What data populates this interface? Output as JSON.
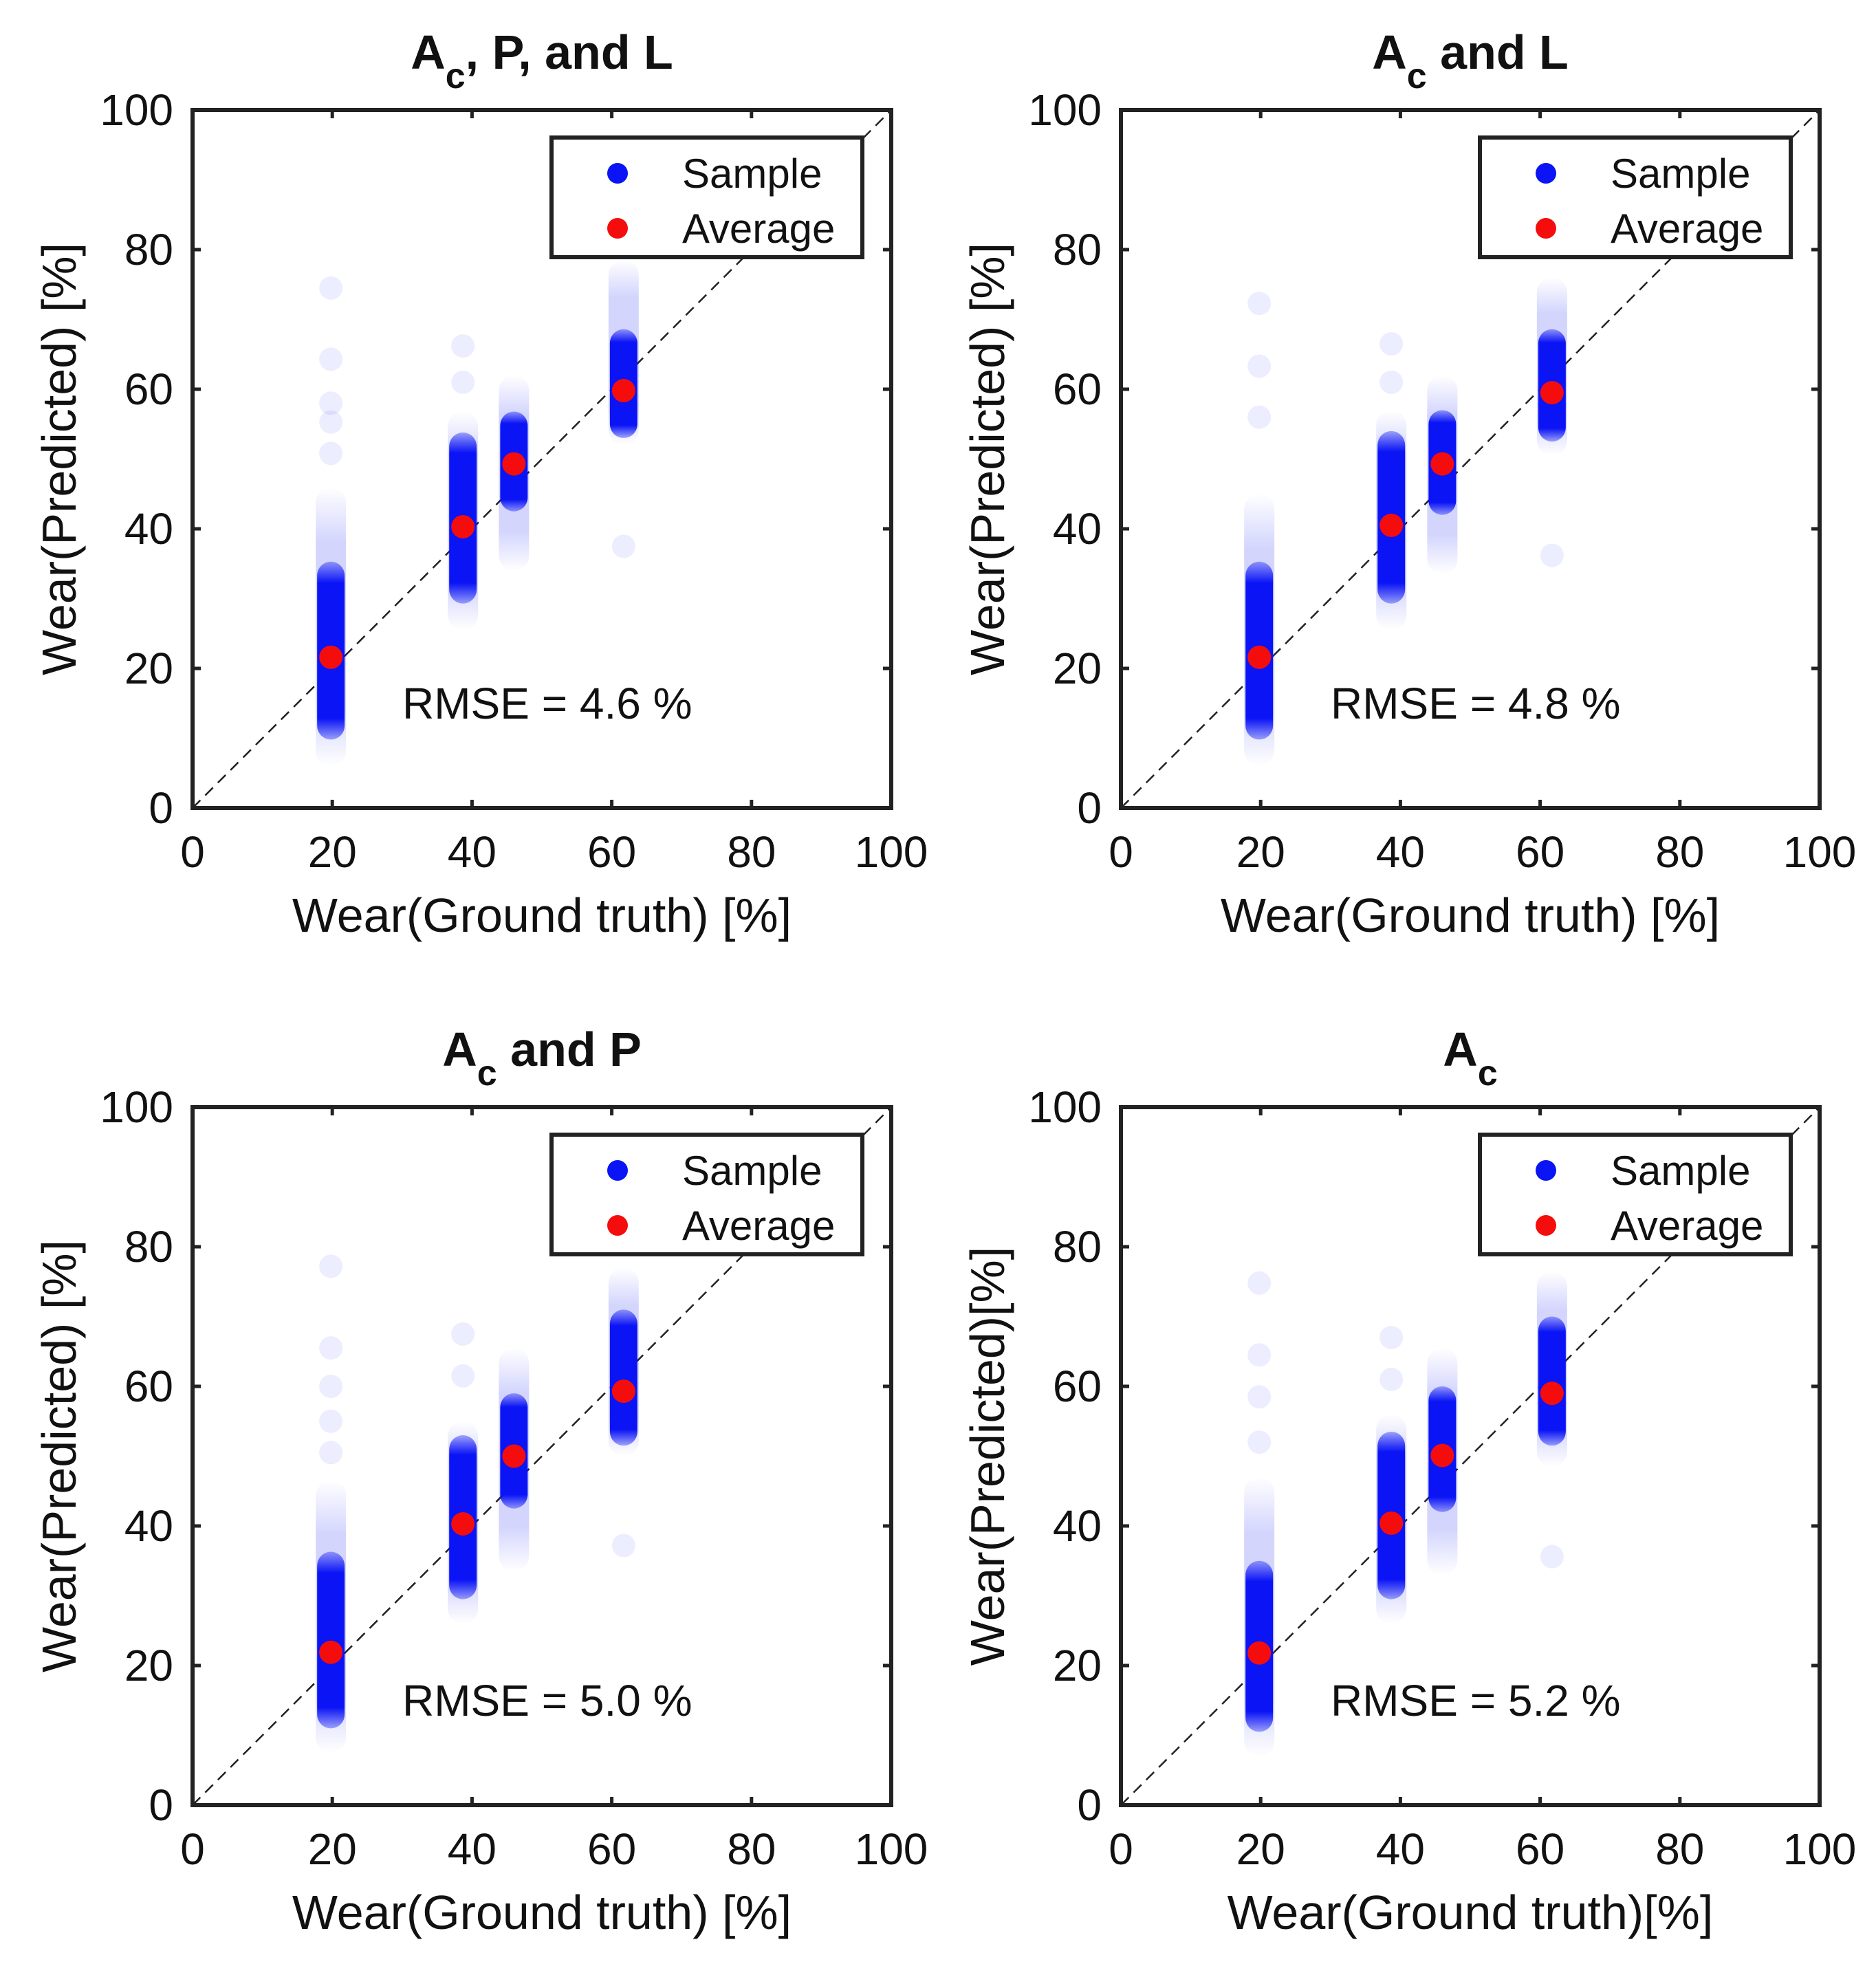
{
  "colors": {
    "sample": "#0a14f5",
    "average": "#f50d0d",
    "axis": "#222222",
    "diagonal": "#222222"
  },
  "chart_data": [
    {
      "type": "scatter",
      "title": {
        "main": "A",
        "sub": "c",
        "rest": ", P, and L"
      },
      "xlabel": "Wear(Ground truth) [%]",
      "ylabel": "Wear(Predicted) [%]",
      "xlim": [
        0,
        100
      ],
      "ylim": [
        0,
        100
      ],
      "xticks": [
        "0",
        "20",
        "40",
        "60",
        "80",
        "100"
      ],
      "yticks": [
        "0",
        "20",
        "40",
        "60",
        "80",
        "100"
      ],
      "legend": {
        "position": "top-right",
        "entries": [
          "Sample",
          "Average"
        ]
      },
      "annotation": "RMSE =  4.6 %",
      "reference_line": "y = x",
      "series": [
        {
          "name": "Sample",
          "columns": [
            {
              "x": 19.8,
              "core": [
                9.8,
                35.3
              ],
              "faint": [
                6.0,
                46.0
              ],
              "outliers": [
                50.8,
                55.3,
                58.0,
                64.3,
                74.5
              ]
            },
            {
              "x": 38.7,
              "core": [
                29.3,
                53.8
              ],
              "faint": [
                25.5,
                56.8
              ],
              "outliers": [
                61.0,
                66.2
              ]
            },
            {
              "x": 46.0,
              "core": [
                42.5,
                56.8
              ],
              "faint": [
                34.0,
                62.0
              ],
              "outliers": []
            },
            {
              "x": 61.7,
              "core": [
                53.0,
                68.6
              ],
              "faint": [
                52.0,
                78.5
              ],
              "outliers": [
                37.5
              ]
            }
          ]
        },
        {
          "name": "Average",
          "x": [
            19.8,
            38.7,
            46.0,
            61.7
          ],
          "y": [
            21.6,
            40.3,
            49.3,
            59.8
          ]
        }
      ]
    },
    {
      "type": "scatter",
      "title": {
        "main": "A",
        "sub": "c",
        "rest": " and L"
      },
      "xlabel": "Wear(Ground truth) [%]",
      "ylabel": "Wear(Predicted) [%]",
      "xlim": [
        0,
        100
      ],
      "ylim": [
        0,
        100
      ],
      "xticks": [
        "0",
        "20",
        "40",
        "60",
        "80",
        "100"
      ],
      "yticks": [
        "0",
        "20",
        "40",
        "60",
        "80",
        "100"
      ],
      "legend": {
        "position": "top-right",
        "entries": [
          "Sample",
          "Average"
        ]
      },
      "annotation": "RMSE =  4.8 %",
      "reference_line": "y = x",
      "series": [
        {
          "name": "Sample",
          "columns": [
            {
              "x": 19.8,
              "core": [
                9.8,
                35.3
              ],
              "faint": [
                6.0,
                45.0
              ],
              "outliers": [
                56.0,
                63.3,
                72.3
              ]
            },
            {
              "x": 38.7,
              "core": [
                29.3,
                54.0
              ],
              "faint": [
                25.5,
                57.0
              ],
              "outliers": [
                61.0,
                66.5
              ]
            },
            {
              "x": 46.0,
              "core": [
                42.0,
                57.0
              ],
              "faint": [
                33.5,
                62.0
              ],
              "outliers": []
            },
            {
              "x": 61.7,
              "core": [
                52.5,
                68.6
              ],
              "faint": [
                50.5,
                76.0
              ],
              "outliers": [
                36.2
              ]
            }
          ]
        },
        {
          "name": "Average",
          "x": [
            19.8,
            38.7,
            46.0,
            61.7
          ],
          "y": [
            21.6,
            40.5,
            49.3,
            59.5
          ]
        }
      ]
    },
    {
      "type": "scatter",
      "title": {
        "main": "A",
        "sub": "c",
        "rest": " and P"
      },
      "xlabel": "Wear(Ground truth) [%]",
      "ylabel": "Wear(Predicted) [%]",
      "xlim": [
        0,
        100
      ],
      "ylim": [
        0,
        100
      ],
      "xticks": [
        "0",
        "20",
        "40",
        "60",
        "80",
        "100"
      ],
      "yticks": [
        "0",
        "20",
        "40",
        "60",
        "80",
        "100"
      ],
      "legend": {
        "position": "top-right",
        "entries": [
          "Sample",
          "Average"
        ]
      },
      "annotation": "RMSE =  5.0 %",
      "reference_line": "y = x",
      "series": [
        {
          "name": "Sample",
          "columns": [
            {
              "x": 19.8,
              "core": [
                11.0,
                36.3
              ],
              "faint": [
                7.5,
                46.5
              ],
              "outliers": [
                50.5,
                55.0,
                60.0,
                65.5,
                77.2
              ]
            },
            {
              "x": 38.7,
              "core": [
                29.5,
                53.0
              ],
              "faint": [
                26.0,
                55.0
              ],
              "outliers": [
                61.5,
                67.5
              ]
            },
            {
              "x": 46.0,
              "core": [
                42.5,
                59.0
              ],
              "faint": [
                33.5,
                65.5
              ],
              "outliers": []
            },
            {
              "x": 61.7,
              "core": [
                51.5,
                71.0
              ],
              "faint": [
                50.0,
                77.0
              ],
              "outliers": [
                37.2
              ]
            }
          ]
        },
        {
          "name": "Average",
          "x": [
            19.8,
            38.7,
            46.0,
            61.7
          ],
          "y": [
            21.9,
            40.3,
            50.0,
            59.3
          ]
        }
      ]
    },
    {
      "type": "scatter",
      "title": {
        "main": "A",
        "sub": "c",
        "rest": ""
      },
      "xlabel": "Wear(Ground truth)[%]",
      "ylabel": "Wear(Predicted)[%]",
      "xlim": [
        0,
        100
      ],
      "ylim": [
        0,
        100
      ],
      "xticks": [
        "0",
        "20",
        "40",
        "60",
        "80",
        "100"
      ],
      "yticks": [
        "0",
        "20",
        "40",
        "60",
        "80",
        "100"
      ],
      "legend": {
        "position": "top-right",
        "entries": [
          "Sample",
          "Average"
        ]
      },
      "annotation": "RMSE =  5.2 %",
      "reference_line": "y = x",
      "series": [
        {
          "name": "Sample",
          "columns": [
            {
              "x": 19.8,
              "core": [
                10.5,
                35.0
              ],
              "faint": [
                7.0,
                47.0
              ],
              "outliers": [
                52.0,
                58.5,
                64.5,
                74.8
              ]
            },
            {
              "x": 38.7,
              "core": [
                29.5,
                53.5
              ],
              "faint": [
                26.0,
                56.0
              ],
              "outliers": [
                61.0,
                67.0
              ]
            },
            {
              "x": 46.0,
              "core": [
                42.0,
                60.0
              ],
              "faint": [
                33.0,
                65.5
              ],
              "outliers": []
            },
            {
              "x": 61.7,
              "core": [
                51.5,
                70.0
              ],
              "faint": [
                48.5,
                76.5
              ],
              "outliers": [
                35.6
              ]
            }
          ]
        },
        {
          "name": "Average",
          "x": [
            19.8,
            38.7,
            46.0,
            61.7
          ],
          "y": [
            21.8,
            40.4,
            50.1,
            59.0
          ]
        }
      ]
    }
  ]
}
